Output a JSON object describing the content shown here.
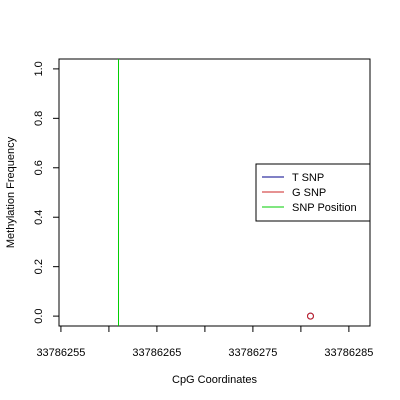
{
  "chart_data": {
    "type": "scatter",
    "title": "",
    "xlabel": "CpG Coordinates",
    "ylabel": "Methylation Frequency",
    "xlim": [
      33786254.8,
      33786287.2
    ],
    "ylim": [
      -0.04,
      1.04
    ],
    "x_ticks": [
      33786255,
      33786260,
      33786265,
      33786270,
      33786275,
      33786280,
      33786285
    ],
    "x_tick_labels": [
      "33786255",
      "",
      "33786265",
      "",
      "33786275",
      "",
      "33786285"
    ],
    "y_ticks": [
      0,
      0.2,
      0.4,
      0.6,
      0.8,
      1
    ],
    "y_tick_labels": [
      "0.0",
      "0.2",
      "0.4",
      "0.6",
      "0.8",
      "1.0"
    ],
    "grid": false,
    "legend_position": "right",
    "series": [
      {
        "name": "T SNP",
        "color": "#00008b",
        "points": [
          {
            "x": 33786281,
            "y": 0
          }
        ]
      },
      {
        "name": "G SNP",
        "color": "#cd2626",
        "points": [
          {
            "x": 33786281,
            "y": 0
          }
        ]
      }
    ],
    "snp_position": {
      "name": "SNP Position",
      "x": 33786261,
      "color": "#00cd00"
    },
    "legend": [
      {
        "label": "T SNP",
        "color": "#00008b"
      },
      {
        "label": "G SNP",
        "color": "#cd2626"
      },
      {
        "label": "SNP Position",
        "color": "#00cd00"
      }
    ]
  }
}
